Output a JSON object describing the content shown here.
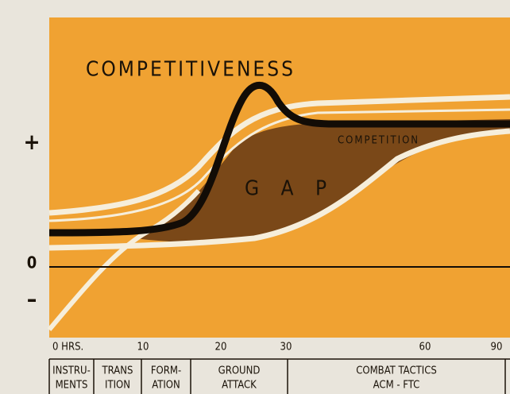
{
  "title": "COMPETITIVENESS",
  "gap_label": "G A P",
  "competition_label": "COMPETITION",
  "y_labels": [
    "+",
    "0",
    "–"
  ],
  "x_labels": [
    "0 HRS.",
    "10",
    "20",
    "30",
    "60",
    "90"
  ],
  "phases": [
    [
      "INSTRU-",
      "MENTS"
    ],
    [
      "TRANS",
      "ITION"
    ],
    [
      "FORM-",
      "ATION"
    ],
    [
      "GROUND",
      "ATTACK"
    ],
    [
      "COMBAT TACTICS",
      "ACM - FTC"
    ]
  ]
}
